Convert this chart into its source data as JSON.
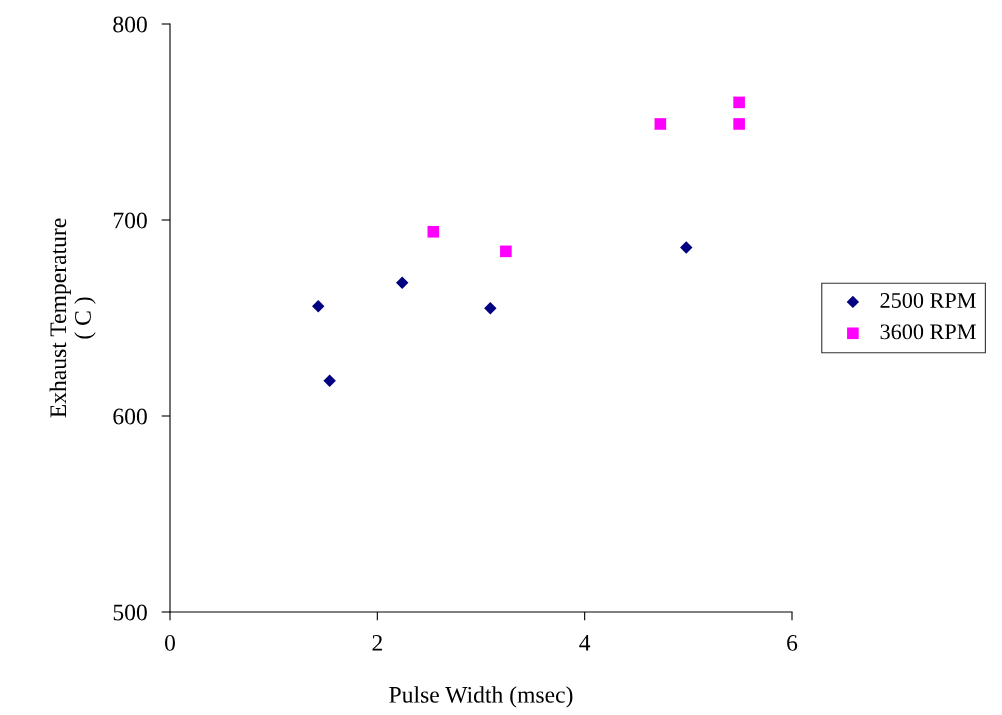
{
  "chart_data": {
    "type": "scatter",
    "xlabel": "Pulse Width (msec)",
    "ylabel": "Exhaust Temperature\n( C )",
    "xlim": [
      0,
      6
    ],
    "xticks": [
      0,
      2,
      4,
      6
    ],
    "ylim": [
      500,
      800
    ],
    "yticks": [
      500,
      600,
      700,
      800
    ],
    "grid": false,
    "legend": "right",
    "series": [
      {
        "name": "2500 RPM",
        "color": "#000080",
        "marker": "diamond",
        "x": [
          1.43,
          1.54,
          2.24,
          3.09,
          4.98
        ],
        "values": [
          656,
          618,
          668,
          655,
          686
        ]
      },
      {
        "name": "3600 RPM",
        "color": "#ff00ff",
        "marker": "square",
        "x": [
          2.54,
          3.24,
          4.73,
          5.49,
          5.49
        ],
        "values": [
          694,
          684,
          749,
          760,
          749
        ]
      }
    ]
  }
}
